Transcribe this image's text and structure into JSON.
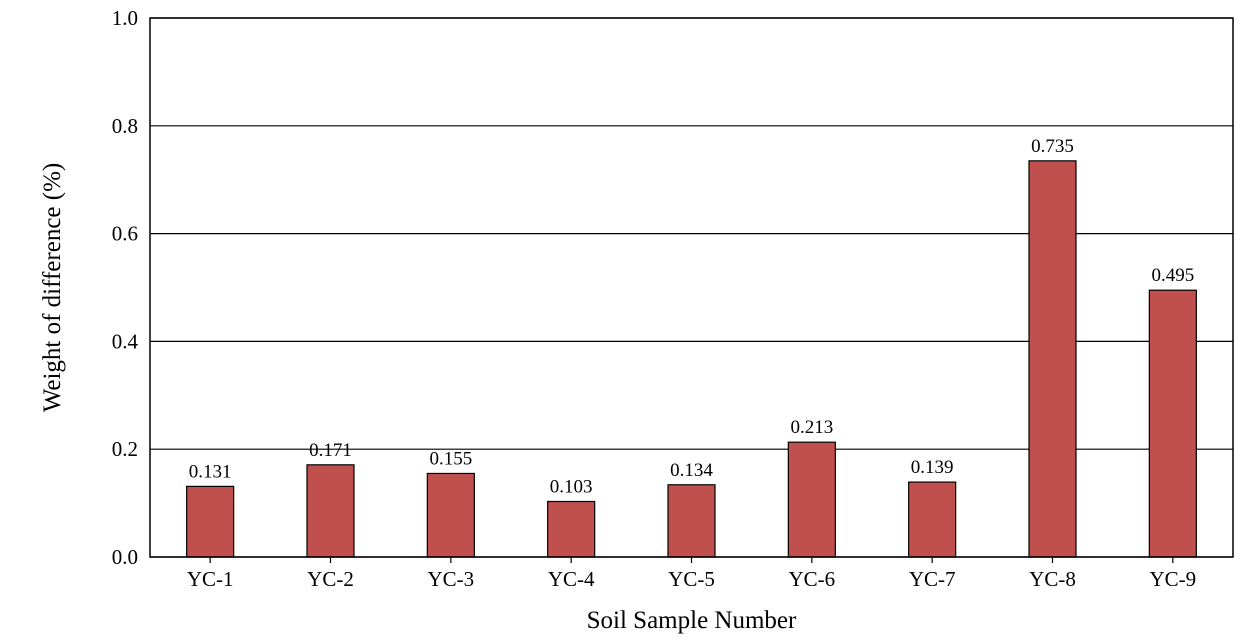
{
  "chart_data": {
    "type": "bar",
    "title": "",
    "xlabel": "Soil Sample Number",
    "ylabel": "Weight of difference (%)",
    "categories": [
      "YC-1",
      "YC-2",
      "YC-3",
      "YC-4",
      "YC-5",
      "YC-6",
      "YC-7",
      "YC-8",
      "YC-9"
    ],
    "values": [
      0.131,
      0.171,
      0.155,
      0.103,
      0.134,
      0.213,
      0.139,
      0.735,
      0.495
    ],
    "value_labels": [
      "0.131",
      "0.171",
      "0.155",
      "0.103",
      "0.134",
      "0.213",
      "0.139",
      "0.735",
      "0.495"
    ],
    "ylim": [
      0,
      1.0
    ],
    "yticks": [
      0.0,
      0.2,
      0.4,
      0.6,
      0.8,
      1.0
    ],
    "ytick_labels": [
      "0.0",
      "0.2",
      "0.4",
      "0.6",
      "0.8",
      "1.0"
    ],
    "grid": "horizontal",
    "legend": "none",
    "colors": {
      "bar_fill": "#C0504D",
      "bar_stroke": "#000000",
      "grid": "#000000"
    }
  }
}
